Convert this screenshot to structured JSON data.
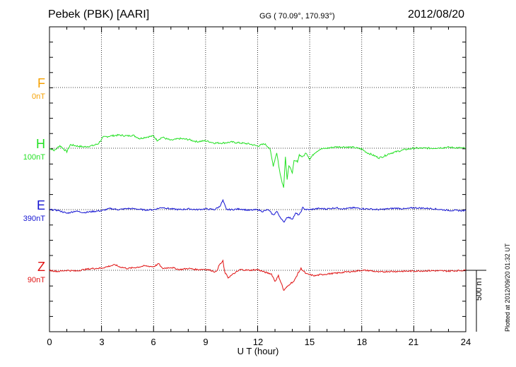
{
  "header": {
    "station": "Pebek (PBK)  [AARI]",
    "coords": "GG ( 70.09°, 170.93°)",
    "date": "2012/08/20"
  },
  "footer": {
    "plotted": "Plotted at 2012/09/20 01:32 UT",
    "scale_bar": "500 nT"
  },
  "colors": {
    "F": "#f5a000",
    "H": "#22e022",
    "E": "#1414d2",
    "Z": "#e01010"
  },
  "chart_data": {
    "type": "line",
    "xlabel": "U T (hour)",
    "xlim": [
      0,
      24
    ],
    "xticks": [
      0,
      3,
      6,
      9,
      12,
      15,
      18,
      21,
      24
    ],
    "grid": true,
    "components": [
      {
        "name": "F",
        "scale": "0nT",
        "values": []
      },
      {
        "name": "H",
        "scale": "100nT",
        "values": [
          [
            0,
            0
          ],
          [
            0.3,
            -5
          ],
          [
            0.6,
            6
          ],
          [
            1,
            -8
          ],
          [
            1.2,
            8
          ],
          [
            1.6,
            5
          ],
          [
            2,
            3
          ],
          [
            2.5,
            6
          ],
          [
            2.8,
            10
          ],
          [
            3.1,
            25
          ],
          [
            3.5,
            28
          ],
          [
            4,
            30
          ],
          [
            4.5,
            28
          ],
          [
            4.8,
            30
          ],
          [
            5.2,
            22
          ],
          [
            5.5,
            25
          ],
          [
            6,
            28
          ],
          [
            6.2,
            18
          ],
          [
            6.5,
            25
          ],
          [
            7,
            18
          ],
          [
            7.5,
            22
          ],
          [
            8,
            20
          ],
          [
            8.5,
            15
          ],
          [
            9,
            17
          ],
          [
            9.5,
            12
          ],
          [
            10,
            12
          ],
          [
            10.5,
            14
          ],
          [
            11,
            12
          ],
          [
            11.5,
            10
          ],
          [
            12,
            5
          ],
          [
            12.4,
            10
          ],
          [
            12.7,
            0
          ],
          [
            12.9,
            -40
          ],
          [
            13.1,
            -10
          ],
          [
            13.3,
            -60
          ],
          [
            13.5,
            -90
          ],
          [
            13.6,
            -20
          ],
          [
            13.7,
            -70
          ],
          [
            13.8,
            -40
          ],
          [
            14.0,
            -55
          ],
          [
            14.1,
            -30
          ],
          [
            14.3,
            -30
          ],
          [
            14.4,
            -15
          ],
          [
            14.6,
            -20
          ],
          [
            14.8,
            -10
          ],
          [
            15,
            -25
          ],
          [
            15.3,
            -10
          ],
          [
            15.6,
            -2
          ],
          [
            16,
            0
          ],
          [
            16.5,
            3
          ],
          [
            17,
            3
          ],
          [
            17.5,
            2
          ],
          [
            18,
            -2
          ],
          [
            18.3,
            -10
          ],
          [
            18.6,
            -15
          ],
          [
            19,
            -22
          ],
          [
            19.3,
            -18
          ],
          [
            19.6,
            -12
          ],
          [
            20,
            -8
          ],
          [
            20.5,
            -3
          ],
          [
            21,
            0
          ],
          [
            22,
            0
          ],
          [
            23,
            2
          ],
          [
            24,
            0
          ]
        ]
      },
      {
        "name": "E",
        "scale": "390nT",
        "values": [
          [
            0,
            0
          ],
          [
            0.5,
            -2
          ],
          [
            1,
            -10
          ],
          [
            1.5,
            -4
          ],
          [
            2,
            -8
          ],
          [
            2.5,
            -5
          ],
          [
            3,
            -3
          ],
          [
            3.5,
            3
          ],
          [
            4,
            0
          ],
          [
            4.5,
            3
          ],
          [
            5,
            2
          ],
          [
            5.5,
            -1
          ],
          [
            6,
            0
          ],
          [
            6.5,
            6
          ],
          [
            7,
            2
          ],
          [
            7.5,
            0
          ],
          [
            8,
            2
          ],
          [
            8.5,
            0
          ],
          [
            9,
            2
          ],
          [
            9.5,
            0
          ],
          [
            9.8,
            8
          ],
          [
            10,
            25
          ],
          [
            10.2,
            0
          ],
          [
            10.5,
            0
          ],
          [
            11,
            2
          ],
          [
            11.5,
            -2
          ],
          [
            12,
            0
          ],
          [
            12.3,
            -5
          ],
          [
            12.6,
            0
          ],
          [
            12.9,
            -15
          ],
          [
            13.1,
            -5
          ],
          [
            13.3,
            -20
          ],
          [
            13.5,
            -35
          ],
          [
            13.7,
            -20
          ],
          [
            14,
            -25
          ],
          [
            14.2,
            -10
          ],
          [
            14.4,
            -15
          ],
          [
            14.6,
            5
          ],
          [
            14.8,
            0
          ],
          [
            15,
            0
          ],
          [
            15.5,
            3
          ],
          [
            16,
            2
          ],
          [
            16.5,
            5
          ],
          [
            17,
            2
          ],
          [
            17.5,
            5
          ],
          [
            18,
            3
          ],
          [
            19,
            0
          ],
          [
            20,
            4
          ],
          [
            20.5,
            2
          ],
          [
            21,
            5
          ],
          [
            22,
            3
          ],
          [
            23,
            -2
          ],
          [
            24,
            -3
          ]
        ]
      },
      {
        "name": "Z",
        "scale": "90nT",
        "values": [
          [
            0,
            0
          ],
          [
            0.5,
            -3
          ],
          [
            1,
            0
          ],
          [
            1.5,
            -2
          ],
          [
            2,
            2
          ],
          [
            2.5,
            5
          ],
          [
            3,
            6
          ],
          [
            3.5,
            12
          ],
          [
            3.8,
            15
          ],
          [
            4,
            10
          ],
          [
            4.5,
            5
          ],
          [
            5,
            8
          ],
          [
            5.5,
            12
          ],
          [
            6,
            10
          ],
          [
            6.3,
            18
          ],
          [
            6.5,
            5
          ],
          [
            7,
            8
          ],
          [
            7.5,
            2
          ],
          [
            8,
            5
          ],
          [
            8.5,
            2
          ],
          [
            9,
            3
          ],
          [
            9.3,
            0
          ],
          [
            9.6,
            -5
          ],
          [
            9.8,
            15
          ],
          [
            10,
            25
          ],
          [
            10.1,
            -5
          ],
          [
            10.3,
            -20
          ],
          [
            10.6,
            -10
          ],
          [
            11,
            2
          ],
          [
            11.5,
            0
          ],
          [
            12,
            2
          ],
          [
            12.4,
            -5
          ],
          [
            12.8,
            -10
          ],
          [
            13,
            -30
          ],
          [
            13.2,
            -15
          ],
          [
            13.4,
            -40
          ],
          [
            13.5,
            -55
          ],
          [
            13.7,
            -45
          ],
          [
            13.9,
            -35
          ],
          [
            14.1,
            -30
          ],
          [
            14.3,
            -10
          ],
          [
            14.5,
            5
          ],
          [
            14.8,
            -10
          ],
          [
            15.3,
            -15
          ],
          [
            15.6,
            -12
          ],
          [
            16,
            -10
          ],
          [
            16.5,
            -8
          ],
          [
            17,
            -5
          ],
          [
            17.5,
            -3
          ],
          [
            18,
            0
          ],
          [
            18.5,
            -1
          ],
          [
            19,
            -5
          ],
          [
            19.5,
            -3
          ],
          [
            20,
            -3
          ],
          [
            21,
            -2
          ],
          [
            22,
            -1
          ],
          [
            23,
            -2
          ],
          [
            24,
            0
          ]
        ]
      }
    ]
  }
}
